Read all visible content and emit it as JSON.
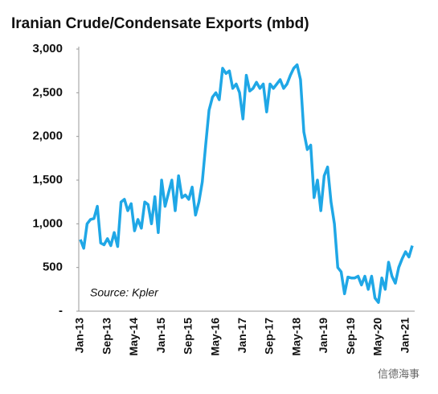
{
  "chart_data": {
    "type": "line",
    "title": "Iranian Crude/Condensate Exports (mbd)",
    "annotation": "Source: Kpler",
    "watermark": "信德海事",
    "categories": [
      "Jan-13",
      null,
      null,
      null,
      null,
      null,
      null,
      null,
      "Sep-13",
      null,
      null,
      null,
      null,
      null,
      null,
      null,
      "May-14",
      null,
      null,
      null,
      null,
      null,
      null,
      null,
      "Jan-15",
      null,
      null,
      null,
      null,
      null,
      null,
      null,
      "Sep-15",
      null,
      null,
      null,
      null,
      null,
      null,
      null,
      "May-16",
      null,
      null,
      null,
      null,
      null,
      null,
      null,
      "Jan-17",
      null,
      null,
      null,
      null,
      null,
      null,
      null,
      "Sep-17",
      null,
      null,
      null,
      null,
      null,
      null,
      null,
      "May-18",
      null,
      null,
      null,
      null,
      null,
      null,
      null,
      "Jan-19",
      null,
      null,
      null,
      null,
      null,
      null,
      null,
      "Sep-19",
      null,
      null,
      null,
      null,
      null,
      null,
      null,
      "May-20",
      null,
      null,
      null,
      null,
      null,
      null,
      null,
      "Jan-21",
      null,
      null
    ],
    "series": [
      {
        "name": "Exports",
        "color": "#1fa7e6",
        "values": [
          820,
          720,
          1000,
          1050,
          1060,
          1200,
          780,
          760,
          830,
          750,
          900,
          740,
          1250,
          1280,
          1150,
          1230,
          920,
          1050,
          950,
          1250,
          1220,
          1000,
          1310,
          900,
          1500,
          1200,
          1350,
          1500,
          1150,
          1550,
          1300,
          1330,
          1280,
          1420,
          1100,
          1250,
          1480,
          1900,
          2300,
          2450,
          2500,
          2420,
          2780,
          2720,
          2750,
          2550,
          2600,
          2500,
          2200,
          2700,
          2520,
          2550,
          2620,
          2550,
          2600,
          2280,
          2600,
          2550,
          2600,
          2650,
          2550,
          2600,
          2700,
          2780,
          2820,
          2650,
          2050,
          1850,
          1900,
          1300,
          1500,
          1150,
          1550,
          1650,
          1250,
          1000,
          500,
          450,
          200,
          390,
          380,
          380,
          400,
          300,
          400,
          250,
          400,
          150,
          100,
          380,
          250,
          560,
          400,
          320,
          500,
          600,
          680,
          620,
          750
        ]
      }
    ],
    "ylim": [
      0,
      3000
    ],
    "yticks": [
      {
        "value": 0,
        "label": "-"
      },
      500,
      {
        "value": 1000,
        "label": "1,000"
      },
      {
        "value": 1500,
        "label": "1,500"
      },
      {
        "value": 2000,
        "label": "2,000"
      },
      {
        "value": 2500,
        "label": "2,500"
      },
      {
        "value": 3000,
        "label": "3,000"
      }
    ],
    "grid": false
  }
}
